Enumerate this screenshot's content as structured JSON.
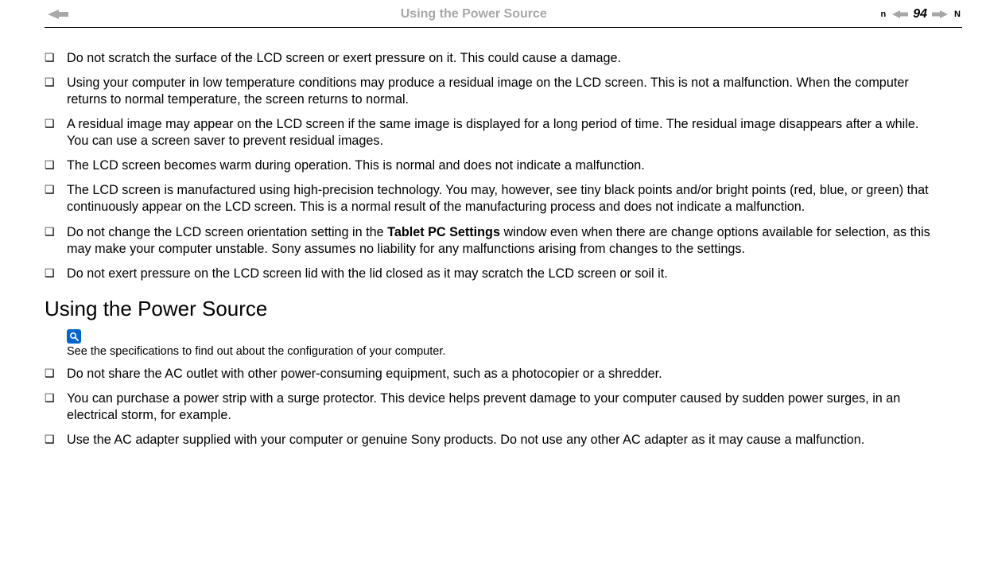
{
  "header": {
    "breadcrumb_title": "Using the Power Source",
    "page_number": "94",
    "nav_n_label": "n",
    "nav_N_label": "N",
    "arrow_fill": "#a8a8a8"
  },
  "colors": {
    "header_text": "#a8a8a8",
    "rule": "#000000",
    "body_text": "#000000",
    "note_icon_bg": "#0066cc",
    "note_icon_fg": "#ffffff",
    "background": "#ffffff"
  },
  "typography": {
    "body_fontsize_pt": 12,
    "heading_fontsize_pt": 20,
    "note_fontsize_pt": 11,
    "pagenum_fontsize_pt": 12,
    "font_family": "Arial"
  },
  "lcd_bullets": [
    {
      "text": "Do not scratch the surface of the LCD screen or exert pressure on it. This could cause a damage."
    },
    {
      "text": "Using your computer in low temperature conditions may produce a residual image on the LCD screen. This is not a malfunction. When the computer returns to normal temperature, the screen returns to normal."
    },
    {
      "text": "A residual image may appear on the LCD screen if the same image is displayed for a long period of time. The residual image disappears after a while. You can use a screen saver to prevent residual images."
    },
    {
      "text": "The LCD screen becomes warm during operation. This is normal and does not indicate a malfunction."
    },
    {
      "text": "The LCD screen is manufactured using high-precision technology. You may, however, see tiny black points and/or bright points (red, blue, or green) that continuously appear on the LCD screen. This is a normal result of the manufacturing process and does not indicate a malfunction."
    },
    {
      "pre": "Do not change the LCD screen orientation setting in the ",
      "bold": "Tablet PC Settings",
      "post": " window even when there are change options available for selection, as this may make your computer unstable. Sony assumes no liability for any malfunctions arising from changes to the settings."
    },
    {
      "text": "Do not exert pressure on the LCD screen lid with the lid closed as it may scratch the LCD screen or soil it."
    }
  ],
  "section_heading": "Using the Power Source",
  "note": {
    "text": "See the specifications to find out about the configuration of your computer."
  },
  "power_bullets": [
    {
      "text": "Do not share the AC outlet with other power-consuming equipment, such as a photocopier or a shredder."
    },
    {
      "text": "You can purchase a power strip with a surge protector. This device helps prevent damage to your computer caused by sudden power surges, in an electrical storm, for example."
    },
    {
      "text": "Use the AC adapter supplied with your computer or genuine Sony products. Do not use any other AC adapter as it may cause a malfunction."
    }
  ]
}
